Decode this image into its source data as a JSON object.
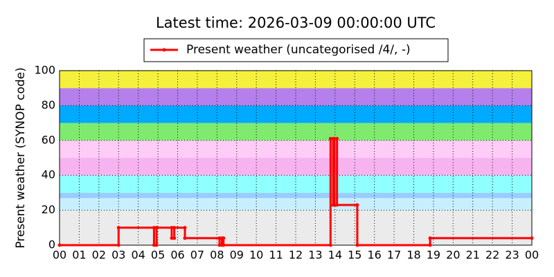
{
  "chart_data": {
    "type": "line",
    "title": "Latest time: 2026-03-09 00:00:00 UTC",
    "y_label": "Present weather (SYNOP code)",
    "x": [
      0,
      3.0,
      3.0,
      4.8,
      4.8,
      4.93,
      4.93,
      5.7,
      5.7,
      5.83,
      5.83,
      6.37,
      6.37,
      8.13,
      8.13,
      8.25,
      8.25,
      8.33,
      8.33,
      13.77,
      13.77,
      13.9,
      13.9,
      13.97,
      13.97,
      14.1,
      14.1,
      15.13,
      15.13,
      18.83,
      18.83,
      24
    ],
    "series": [
      {
        "name": "Present weather (uncategorised /4/, -)",
        "color": "#ff0000",
        "values": [
          0,
          0,
          10,
          10,
          0,
          0,
          10,
          10,
          4,
          4,
          10,
          10,
          4,
          4,
          0,
          0,
          4,
          4,
          0,
          0,
          61,
          61,
          23,
          23,
          61,
          61,
          23,
          23,
          0,
          0,
          4,
          4
        ]
      }
    ],
    "xlim": [
      0,
      24
    ],
    "xticks": [
      {
        "value": 0,
        "label": "00"
      },
      {
        "value": 1,
        "label": "01"
      },
      {
        "value": 2,
        "label": "02"
      },
      {
        "value": 3,
        "label": "03"
      },
      {
        "value": 4,
        "label": "04"
      },
      {
        "value": 5,
        "label": "05"
      },
      {
        "value": 6,
        "label": "06"
      },
      {
        "value": 7,
        "label": "07"
      },
      {
        "value": 8,
        "label": "08"
      },
      {
        "value": 9,
        "label": "09"
      },
      10,
      11,
      12,
      13,
      14,
      15,
      16,
      17,
      18,
      19,
      20,
      21,
      22,
      23,
      {
        "value": 24,
        "label": "00"
      }
    ],
    "ylim": [
      0,
      100
    ],
    "yticks": [
      0,
      20,
      40,
      60,
      80,
      100
    ],
    "grid": true,
    "bands": [
      {
        "from": 0,
        "to": 20,
        "color": "#ebebeb"
      },
      {
        "from": 20,
        "to": 27,
        "color": "#c8efff"
      },
      {
        "from": 27,
        "to": 30,
        "color": "#99ccff"
      },
      {
        "from": 30,
        "to": 40,
        "color": "#8fffff"
      },
      {
        "from": 40,
        "to": 50,
        "color": "#f7b3f0"
      },
      {
        "from": 50,
        "to": 60,
        "color": "#ffccf7"
      },
      {
        "from": 60,
        "to": 70,
        "color": "#7feb6e"
      },
      {
        "from": 70,
        "to": 80,
        "color": "#00aaff"
      },
      {
        "from": 80,
        "to": 90,
        "color": "#b580eb"
      },
      {
        "from": 90,
        "to": 100,
        "color": "#f5f03c"
      }
    ]
  }
}
